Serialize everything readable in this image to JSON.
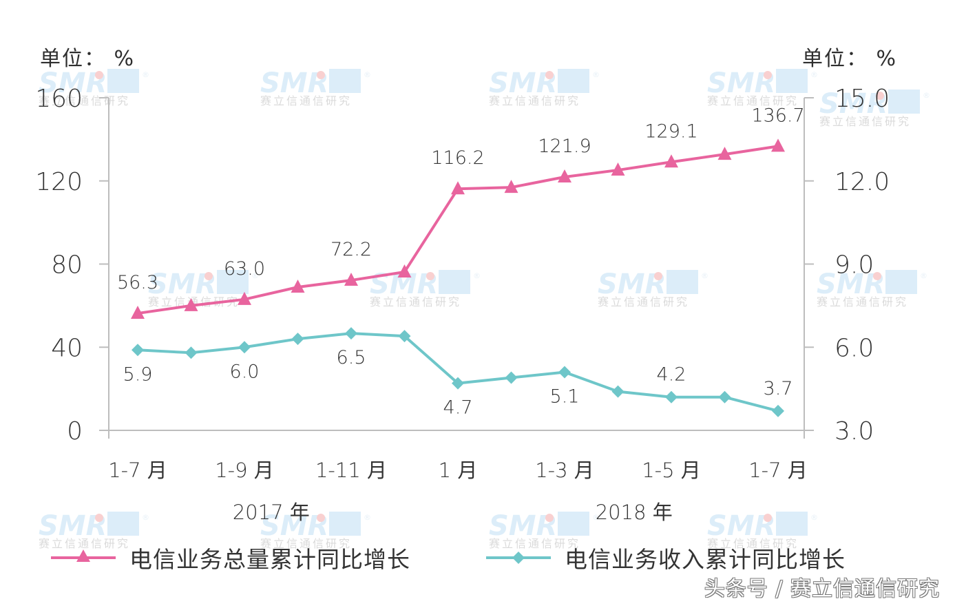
{
  "chart_data": {
    "type": "line",
    "title": "",
    "left_axis": {
      "unit_label": "单位：%",
      "ylim": [
        0,
        160
      ],
      "ticks": [
        0,
        40,
        80,
        120,
        160
      ],
      "tick_labels": [
        "0",
        "40",
        "80",
        "120",
        "160"
      ]
    },
    "right_axis": {
      "unit_label": "单位：%",
      "ylim": [
        3.0,
        15.0
      ],
      "ticks": [
        3.0,
        6.0,
        9.0,
        12.0,
        15.0
      ],
      "tick_labels": [
        "3.0",
        "6.0",
        "9.0",
        "12.0",
        "15.0"
      ]
    },
    "x": [
      "2017-1-7月",
      "2017-1-8月",
      "2017-1-9月",
      "2017-1-10月",
      "2017-1-11月",
      "2017-1-12月",
      "2018-1月",
      "2018-1-2月",
      "2018-1-3月",
      "2018-1-4月",
      "2018-1-5月",
      "2018-1-6月",
      "2018-1-7月"
    ],
    "x_tick_labels": [
      {
        "index": 0,
        "label": "1-7 月"
      },
      {
        "index": 2,
        "label": "1-9 月"
      },
      {
        "index": 4,
        "label": "1-11 月"
      },
      {
        "index": 6,
        "label": "1 月"
      },
      {
        "index": 8,
        "label": "1-3 月"
      },
      {
        "index": 10,
        "label": "1-5 月"
      },
      {
        "index": 12,
        "label": "1-7 月"
      }
    ],
    "x_group_labels": [
      {
        "label": "2017 年",
        "center_index": 2.5
      },
      {
        "label": "2018 年",
        "center_index": 9.3
      }
    ],
    "series": [
      {
        "name": "电信业务总量累计同比增长",
        "axis": "left",
        "color": "#e8649e",
        "marker": "triangle",
        "values": [
          56.3,
          60.0,
          63.0,
          68.9,
          72.2,
          76.2,
          116.2,
          116.9,
          121.9,
          125.2,
          129.1,
          132.8,
          136.7
        ],
        "data_labels": [
          {
            "index": 0,
            "text": "56.3"
          },
          {
            "index": 2,
            "text": "63.0"
          },
          {
            "index": 4,
            "text": "72.2"
          },
          {
            "index": 6,
            "text": "116.2"
          },
          {
            "index": 8,
            "text": "121.9"
          },
          {
            "index": 10,
            "text": "129.1"
          },
          {
            "index": 12,
            "text": "136.7"
          }
        ]
      },
      {
        "name": "电信业务收入累计同比增长",
        "axis": "right",
        "color": "#6ec6c9",
        "marker": "diamond",
        "values": [
          5.9,
          5.8,
          6.0,
          6.3,
          6.5,
          6.4,
          4.7,
          4.9,
          5.1,
          4.4,
          4.2,
          4.2,
          3.7
        ],
        "data_labels": [
          {
            "index": 0,
            "text": "5.9",
            "position": "below"
          },
          {
            "index": 2,
            "text": "6.0",
            "position": "below"
          },
          {
            "index": 4,
            "text": "6.5",
            "position": "below"
          },
          {
            "index": 6,
            "text": "4.7",
            "position": "below"
          },
          {
            "index": 8,
            "text": "5.1",
            "position": "below"
          },
          {
            "index": 10,
            "text": "4.2",
            "position": "above"
          },
          {
            "index": 12,
            "text": "3.7",
            "position": "above"
          }
        ]
      }
    ],
    "grid": false,
    "legend_position": "bottom"
  },
  "units": {
    "left": "单位：  %",
    "right": "单位：  %"
  },
  "legend": [
    {
      "label": "电信业务总量累计同比增长",
      "color": "#e8649e",
      "marker": "triangle-icon"
    },
    {
      "label": "电信业务收入累计同比增长",
      "color": "#6ec6c9",
      "marker": "diamond-icon"
    }
  ],
  "watermark": {
    "logo_text": "SMR",
    "registered_mark": "®",
    "caption": "赛立信通信研究"
  },
  "footer": {
    "credit": "头条号 / 赛立信通信研究"
  },
  "colors": {
    "axis": "#bdbdbd",
    "text": "#333333",
    "pink": "#e8649e",
    "teal": "#6ec6c9",
    "watermark_blue": "#d6ebf8",
    "watermark_dot": "#f9c8c8"
  }
}
